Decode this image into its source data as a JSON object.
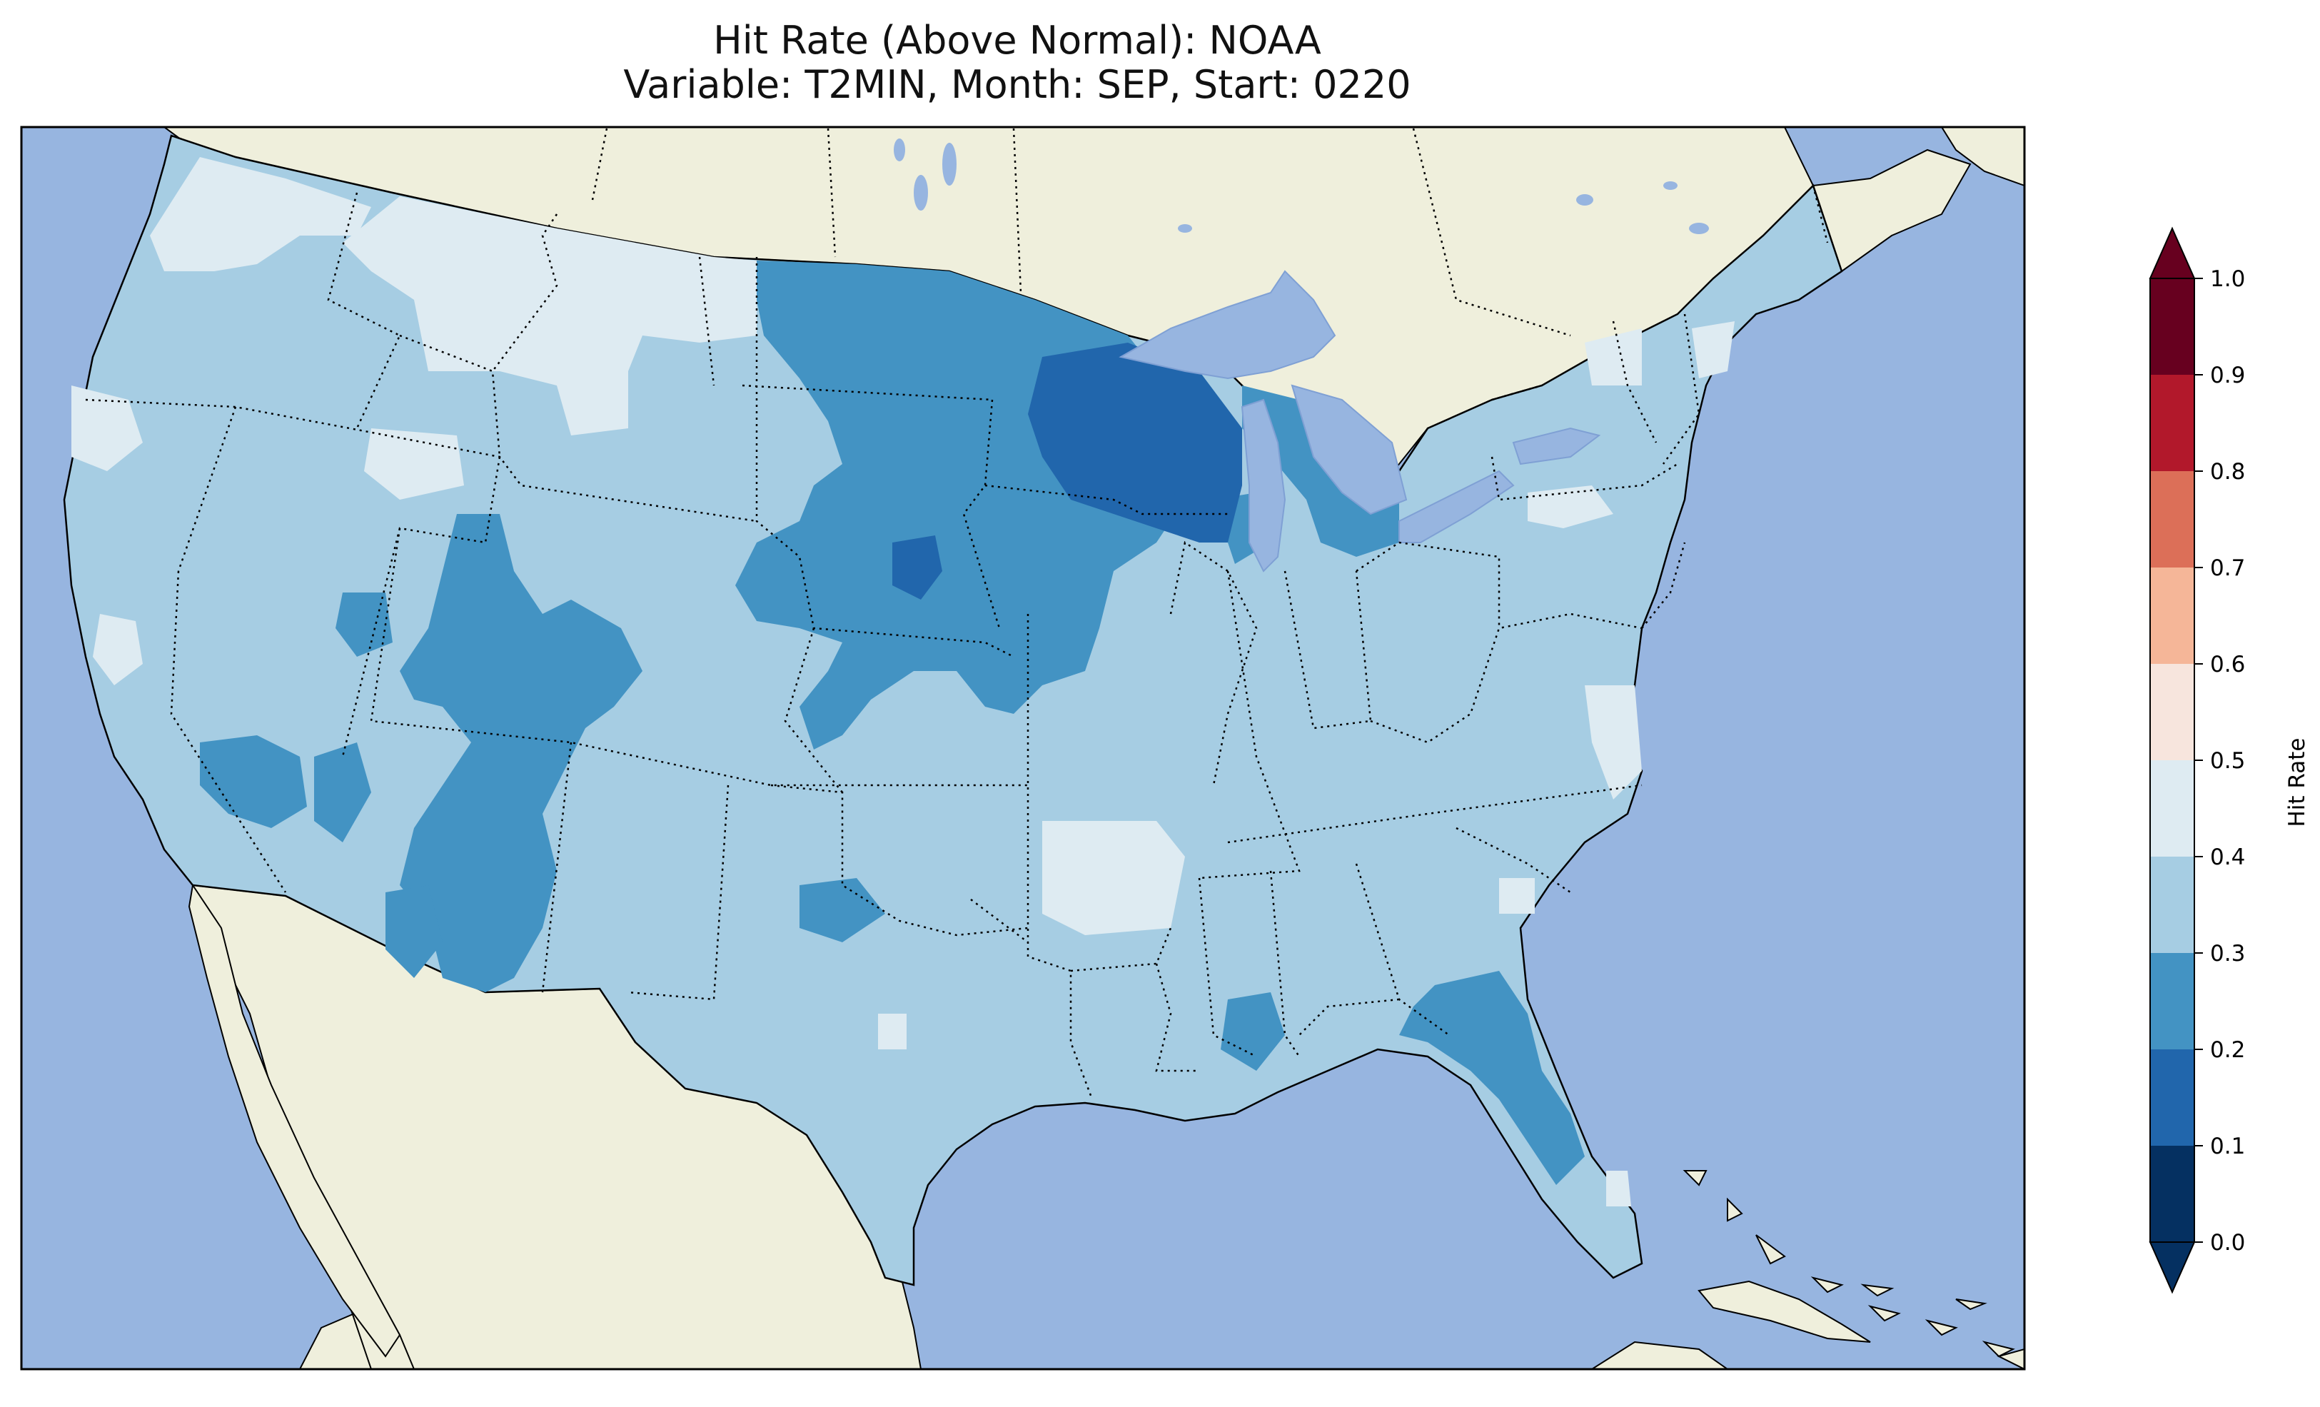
{
  "title": {
    "line1": "Hit Rate (Above Normal): NOAA",
    "line2": "Variable: T2MIN, Month: SEP, Start: 0220"
  },
  "colors": {
    "ocean": "#97b5e0",
    "land": "#efefdc",
    "lake": "#97b5e0",
    "v_0_0_1": "#053061",
    "v_0_1_0_2": "#2166ac",
    "v_0_2_0_3": "#4393c3",
    "v_0_3_0_4": "#a6cde3",
    "v_0_4_0_5": "#deebf2"
  },
  "colorbar": {
    "label": "Hit Rate",
    "ticks": [
      "0.0",
      "0.1",
      "0.2",
      "0.3",
      "0.4",
      "0.5",
      "0.6",
      "0.7",
      "0.8",
      "0.9",
      "1.0"
    ],
    "colors": [
      "#053061",
      "#2166ac",
      "#4393c3",
      "#a6cde3",
      "#deebf2",
      "#f7e5dd",
      "#f5b698",
      "#dc6f58",
      "#b2182b",
      "#67001f"
    ],
    "extend": "both"
  }
}
